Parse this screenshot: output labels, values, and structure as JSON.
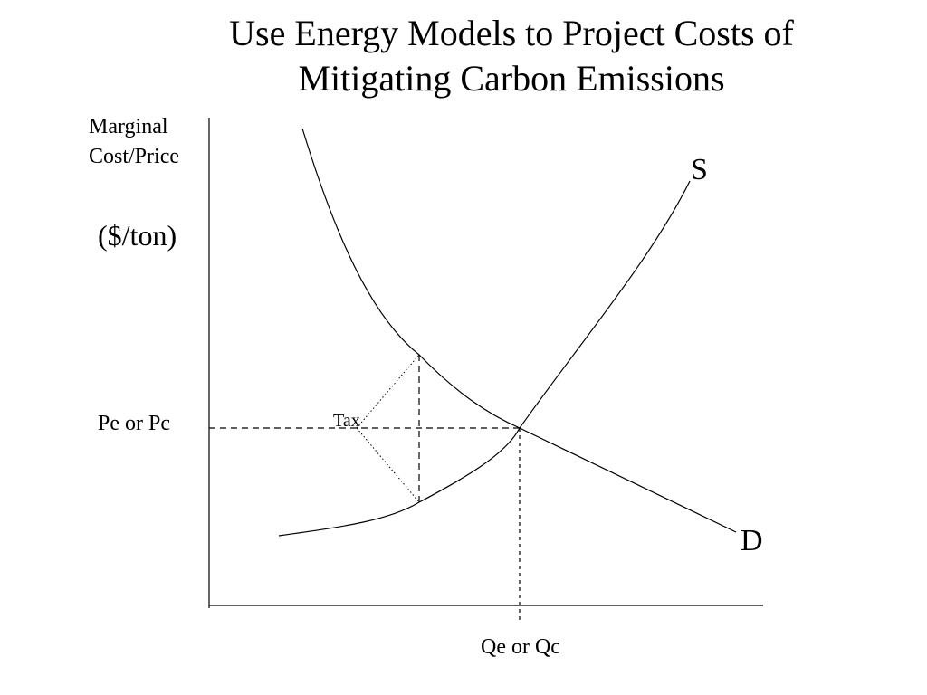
{
  "title": {
    "line1": "Use Energy Models to Project Costs of",
    "line2": "Mitigating Carbon Emissions"
  },
  "diagram": {
    "y_axis_label": {
      "line1": "Marginal",
      "line2": "Cost/Price"
    },
    "y_axis_unit": "($/ton)",
    "price_label": "Pe or Pc",
    "quantity_label": "Qe or Qc",
    "supply_label": "S",
    "demand_label": "D",
    "tax_label": "Tax"
  }
}
